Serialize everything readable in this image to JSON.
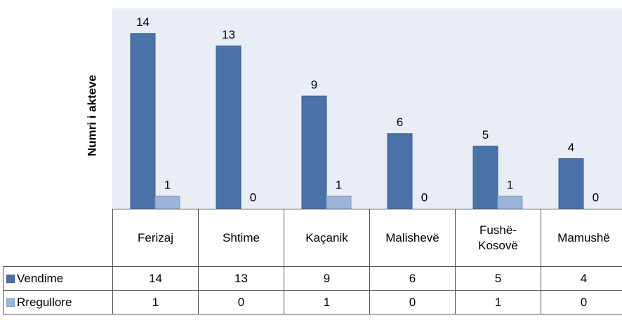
{
  "chart_data": {
    "type": "bar",
    "y_label": "Numri i akteve",
    "categories": [
      "Ferizaj",
      "Shtime",
      "Kaçanik",
      "Malishevë",
      "Fushë-\nKosovë",
      "Mamushë"
    ],
    "series": [
      {
        "name": "Vendime",
        "color": "#4a72a8",
        "values": [
          14,
          13,
          9,
          6,
          5,
          4
        ]
      },
      {
        "name": "Rregullore",
        "color": "#9ab4d9",
        "values": [
          1,
          0,
          1,
          0,
          1,
          0
        ]
      }
    ],
    "ylim": [
      0,
      16
    ]
  }
}
